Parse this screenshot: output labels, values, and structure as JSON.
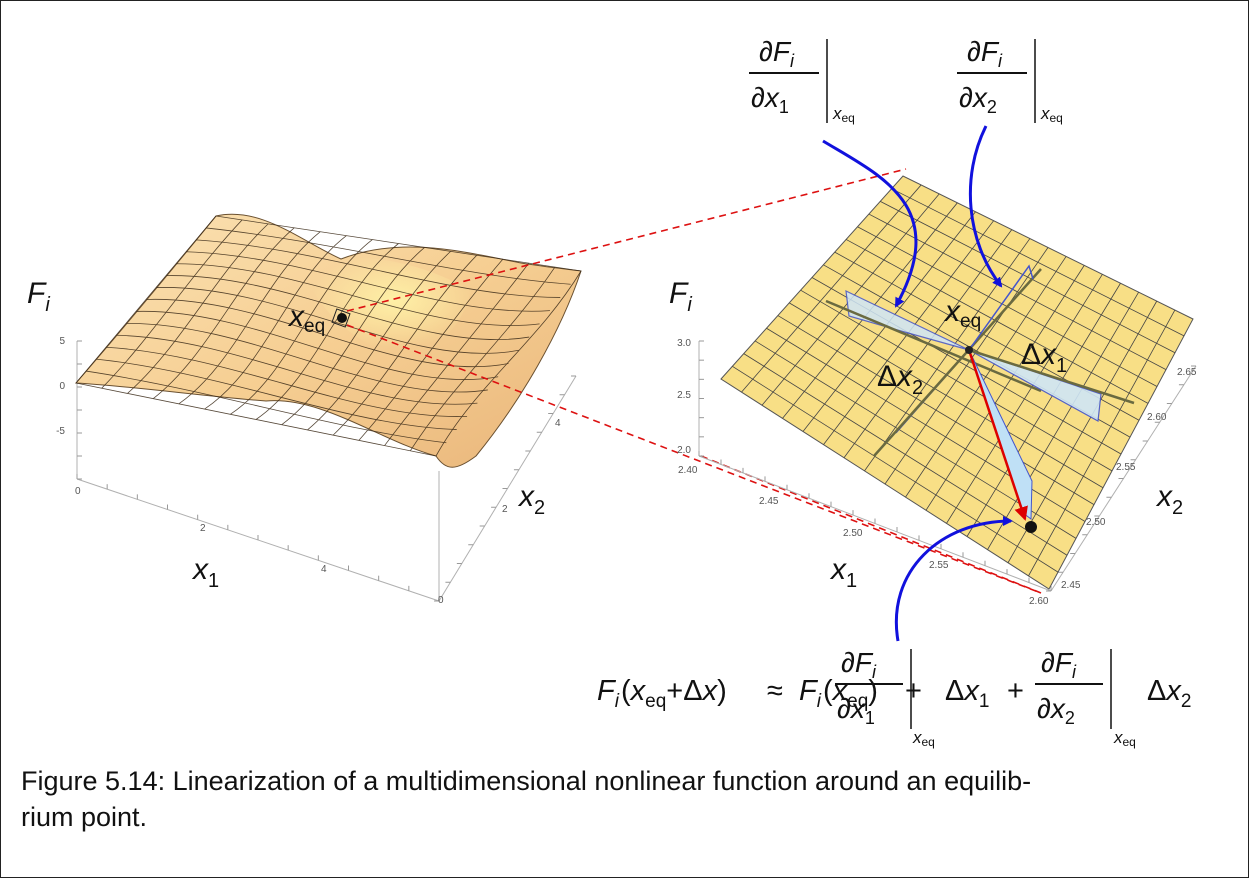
{
  "left_plot": {
    "axis_labels": {
      "f_base": "F",
      "f_sub": "i",
      "x1_base": "x",
      "x1_sub": "1",
      "x2_base": "x",
      "x2_sub": "2"
    },
    "z_ticks": [
      "5",
      "0",
      "-5"
    ],
    "x1_ticks": [
      "0",
      "2",
      "4"
    ],
    "x2_ticks": [
      "0",
      "2",
      "4"
    ],
    "point_label": {
      "base": "x",
      "sub": "eq"
    }
  },
  "right_plot": {
    "axis_labels": {
      "f_base": "F",
      "f_sub": "i",
      "x1_base": "x",
      "x1_sub": "1",
      "x2_base": "x",
      "x2_sub": "2"
    },
    "z_ticks": [
      "3.0",
      "2.5",
      "2.0"
    ],
    "x1_ticks": [
      "2.40",
      "2.45",
      "2.50",
      "2.55",
      "2.60"
    ],
    "x2_ticks": [
      "2.65",
      "2.60",
      "2.55",
      "2.50",
      "2.45"
    ],
    "point_label": {
      "base": "x",
      "sub": "eq"
    },
    "delta1": {
      "d": "Δ",
      "base": "x",
      "sub": "1"
    },
    "delta2": {
      "d": "Δ",
      "base": "x",
      "sub": "2"
    }
  },
  "annotations": {
    "partial1": {
      "num": "∂F",
      "num_sub": "i",
      "den": "∂x",
      "den_sub": "1",
      "eval": "x",
      "eval_sub": "eq"
    },
    "partial2": {
      "num": "∂F",
      "num_sub": "i",
      "den": "∂x",
      "den_sub": "2",
      "eval": "x",
      "eval_sub": "eq"
    }
  },
  "formula": {
    "lhs_f": "F",
    "lhs_sub": "i",
    "lhs_open": "(",
    "lhs_x": "x",
    "lhs_x_sub": "eq",
    "lhs_plus": "+Δ",
    "lhs_dx": "x",
    "lhs_close": ")",
    "approx": "≈",
    "rhs_f": "F",
    "rhs_sub": "i",
    "rhs_open": "(",
    "rhs_x": "x",
    "rhs_x_sub": "eq",
    "rhs_close": ")",
    "plus": "+",
    "term1": {
      "num": "∂F",
      "num_sub": "i",
      "den": "∂x",
      "den_sub": "1",
      "eval": "x",
      "eval_sub": "eq",
      "delta": "Δ",
      "dx": "x",
      "dx_sub": "1"
    },
    "plus2": "+",
    "term2": {
      "num": "∂F",
      "num_sub": "i",
      "den": "∂x",
      "den_sub": "2",
      "eval": "x",
      "eval_sub": "eq",
      "delta": "Δ",
      "dx": "x",
      "dx_sub": "2"
    }
  },
  "caption": "Figure 5.14: Linearization of a multidimensional nonlinear function around an equilibrium point.",
  "caption_line1": "Figure 5.14: Linearization of a multidimensional nonlinear function around an equilib-",
  "caption_line2": "rium point.",
  "colors": {
    "surface": "#f8d59a",
    "plane": "#f8df86",
    "grid": "#333333",
    "zoom_lines": "#dd1111",
    "callout_arrows": "#1111dd",
    "tangent_fill": "#cfe6f7",
    "tangent_edge": "#4455cc",
    "delta_vector": "#dd0000"
  }
}
